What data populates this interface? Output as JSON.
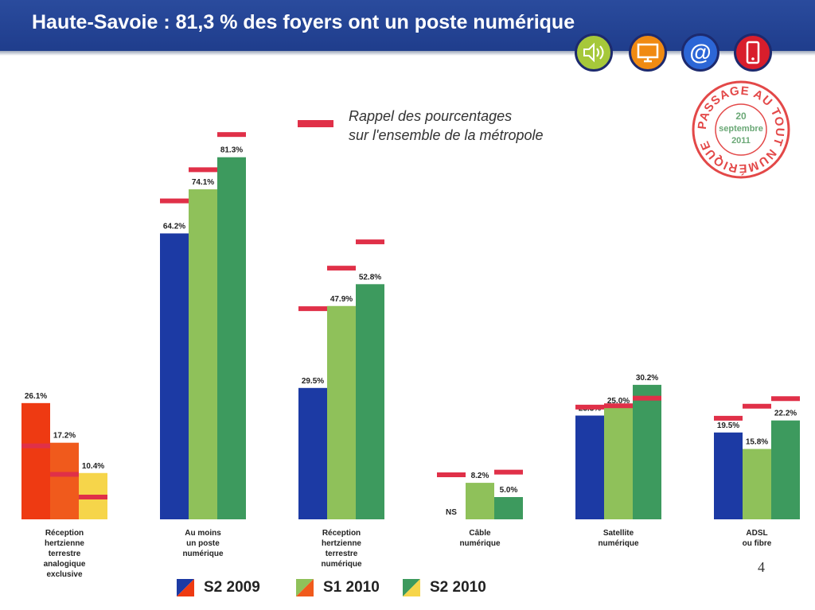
{
  "header": {
    "title": "Haute-Savoie : 81,3 % des foyers ont un poste numérique"
  },
  "icons": [
    "speaker-icon",
    "tv-icon",
    "at-icon",
    "mobile-icon"
  ],
  "stamp": {
    "ring_text": "PASSAGE AU TOUT NUMÉRIQUE",
    "day": "20",
    "month": "septembre",
    "year": "2011"
  },
  "note": {
    "line1": "Rappel des pourcentages",
    "line2": "sur l'ensemble de la métropole"
  },
  "page_number": "4",
  "colors": {
    "blue": "#1c3aa4",
    "green": "#8fc15a",
    "dkgreen": "#3d9a5e",
    "red1": "#ee3a12",
    "red2": "#f05a1c",
    "yellow": "#f6d54a",
    "ref": "#e03048"
  },
  "chart_data": {
    "type": "bar",
    "categories": [
      "Réception hertzienne terrestre analogique exclusive",
      "Au moins un poste numérique",
      "Réception hertzienne terrestre numérique",
      "Câble numérique",
      "Satellite numérique",
      "ADSL ou fibre"
    ],
    "category_lines": [
      [
        "Réception",
        "hertzienne",
        "terrestre",
        "analogique",
        "exclusive"
      ],
      [
        "Au moins",
        "un poste",
        "numérique"
      ],
      [
        "Réception",
        "hertzienne",
        "terrestre",
        "numérique"
      ],
      [
        "Câble",
        "numérique"
      ],
      [
        "Satellite",
        "numérique"
      ],
      [
        "ADSL",
        "ou fibre"
      ]
    ],
    "series": [
      {
        "name": "S2 2009",
        "values": [
          26.1,
          64.2,
          29.5,
          null,
          23.3,
          19.5
        ],
        "labels": [
          "26.1%",
          "64.2%",
          "29.5%",
          "NS",
          "23.3%",
          "19.5%"
        ]
      },
      {
        "name": "S1 2010",
        "values": [
          17.2,
          74.1,
          47.9,
          8.2,
          25.0,
          15.8
        ],
        "labels": [
          "17.2%",
          "74.1%",
          "47.9%",
          "8.2%",
          "25.0%",
          "15.8%"
        ]
      },
      {
        "name": "S2 2010",
        "values": [
          10.4,
          81.3,
          52.8,
          5.0,
          30.2,
          22.2
        ],
        "labels": [
          "10.4%",
          "81.3%",
          "52.8%",
          "5.0%",
          "30.2%",
          "22.2%"
        ]
      }
    ],
    "reference_series": {
      "name": "Rappel des pourcentages sur l'ensemble de la métropole",
      "values": [
        [
          16.5,
          10.1,
          5.0
        ],
        [
          71.5,
          78.5,
          86.4
        ],
        [
          47.3,
          56.4,
          62.3
        ],
        [
          10.0,
          null,
          10.6
        ],
        [
          25.2,
          25.5,
          27.2
        ],
        [
          22.7,
          25.4,
          27.1
        ]
      ]
    },
    "ylim": [
      0,
      90
    ]
  }
}
